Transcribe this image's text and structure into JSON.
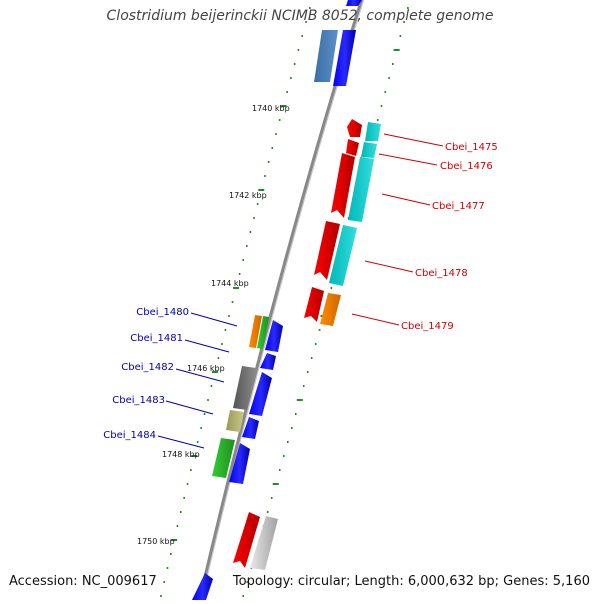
{
  "title": "Clostridium beijerinckii NCIMB 8052, complete genome",
  "accession": "Accession: NC_009617",
  "topology": "Topology: circular; Length: 6,000,632 bp; Genes: 5,160",
  "scale_labels": [
    "1740 kbp",
    "1742 kbp",
    "1744 kbp",
    "1746 kbp",
    "1748 kbp",
    "1750 kbp"
  ],
  "labels_right": [
    "Cbei_1475",
    "Cbei_1476",
    "Cbei_1477",
    "Cbei_1478",
    "Cbei_1479"
  ],
  "labels_left": [
    "Cbei_1480",
    "Cbei_1481",
    "Cbei_1482",
    "Cbei_1483",
    "Cbei_1484"
  ],
  "colors": {
    "right_label": "#cc0000",
    "left_label": "#0000aa",
    "backbone": "#888888",
    "tick": "#228b22"
  }
}
